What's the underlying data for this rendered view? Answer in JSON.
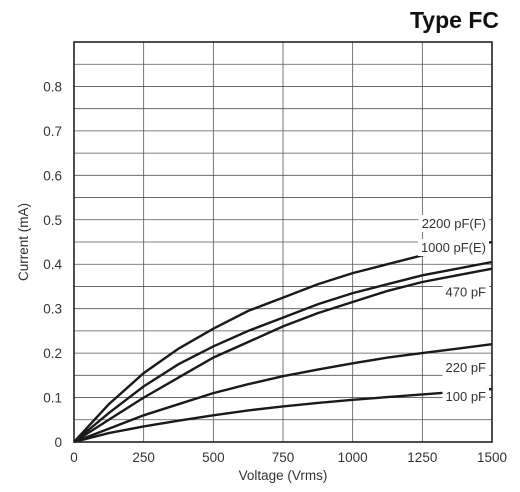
{
  "chart_data": {
    "type": "line",
    "title": "Type FC",
    "xlabel": "Voltage (Vrms)",
    "ylabel": "Current (mA)",
    "xlim": [
      0,
      1500
    ],
    "ylim": [
      0,
      0.9
    ],
    "xticks": [
      0,
      250,
      500,
      750,
      1000,
      1250,
      1500
    ],
    "yticks": [
      0,
      0.1,
      0.2,
      0.3,
      0.4,
      0.5,
      0.6,
      0.7,
      0.8
    ],
    "ytick_labels": [
      "0",
      "0.1",
      "0.2",
      "0.3",
      "0.4",
      "0.5",
      "0.6",
      "0.7",
      "0.8"
    ],
    "grid": true,
    "x": [
      0,
      125,
      250,
      375,
      500,
      625,
      750,
      875,
      1000,
      1125,
      1250,
      1375,
      1500
    ],
    "series": [
      {
        "name": "2200 pF(F)",
        "values": [
          0,
          0.085,
          0.155,
          0.21,
          0.255,
          0.295,
          0.325,
          0.355,
          0.38,
          0.4,
          0.42,
          0.435,
          0.45
        ]
      },
      {
        "name": "1000 pF(E)",
        "values": [
          0,
          0.065,
          0.125,
          0.175,
          0.215,
          0.25,
          0.28,
          0.31,
          0.335,
          0.355,
          0.375,
          0.39,
          0.405
        ]
      },
      {
        "name": "470 pF",
        "values": [
          0,
          0.05,
          0.1,
          0.145,
          0.19,
          0.225,
          0.26,
          0.29,
          0.315,
          0.34,
          0.36,
          0.375,
          0.39
        ]
      },
      {
        "name": "220 pF",
        "values": [
          0,
          0.03,
          0.06,
          0.085,
          0.11,
          0.13,
          0.148,
          0.163,
          0.177,
          0.19,
          0.2,
          0.21,
          0.22
        ]
      },
      {
        "name": "100 pF",
        "values": [
          0,
          0.02,
          0.035,
          0.048,
          0.06,
          0.071,
          0.08,
          0.088,
          0.095,
          0.101,
          0.107,
          0.113,
          0.119
        ]
      }
    ]
  }
}
